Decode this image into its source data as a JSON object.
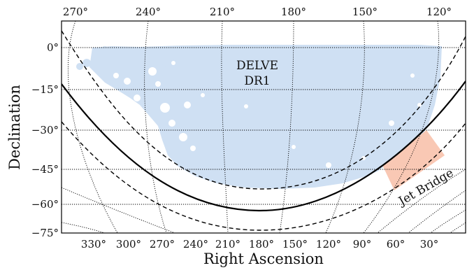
{
  "chart_data": {
    "type": "sky_map",
    "xlabel": "Right Ascension",
    "ylabel": "Declination",
    "top_ra_ticks": [
      "270°",
      "240°",
      "210°",
      "180°",
      "150°",
      "120°"
    ],
    "bottom_ra_ticks": [
      "330°",
      "300°",
      "270°",
      "240°",
      "210°",
      "180°",
      "150°",
      "120°",
      "90°",
      "60°",
      "30°"
    ],
    "dec_ticks": [
      "0°",
      "−15°",
      "−30°",
      "−45°",
      "−60°",
      "−75°"
    ],
    "regions": [
      {
        "name": "DELVE DR1",
        "label_lines": [
          "DELVE",
          "DR1"
        ],
        "color": "#cfe0f3"
      },
      {
        "name": "Jet Bridge",
        "label_lines": [
          "Jet Bridge"
        ],
        "color": "#f9c8b4"
      }
    ],
    "lines": {
      "galactic_plane": {
        "style": "solid",
        "color": "#000000"
      },
      "galactic_offsets": {
        "style": "dashed",
        "color": "#000000"
      }
    }
  }
}
